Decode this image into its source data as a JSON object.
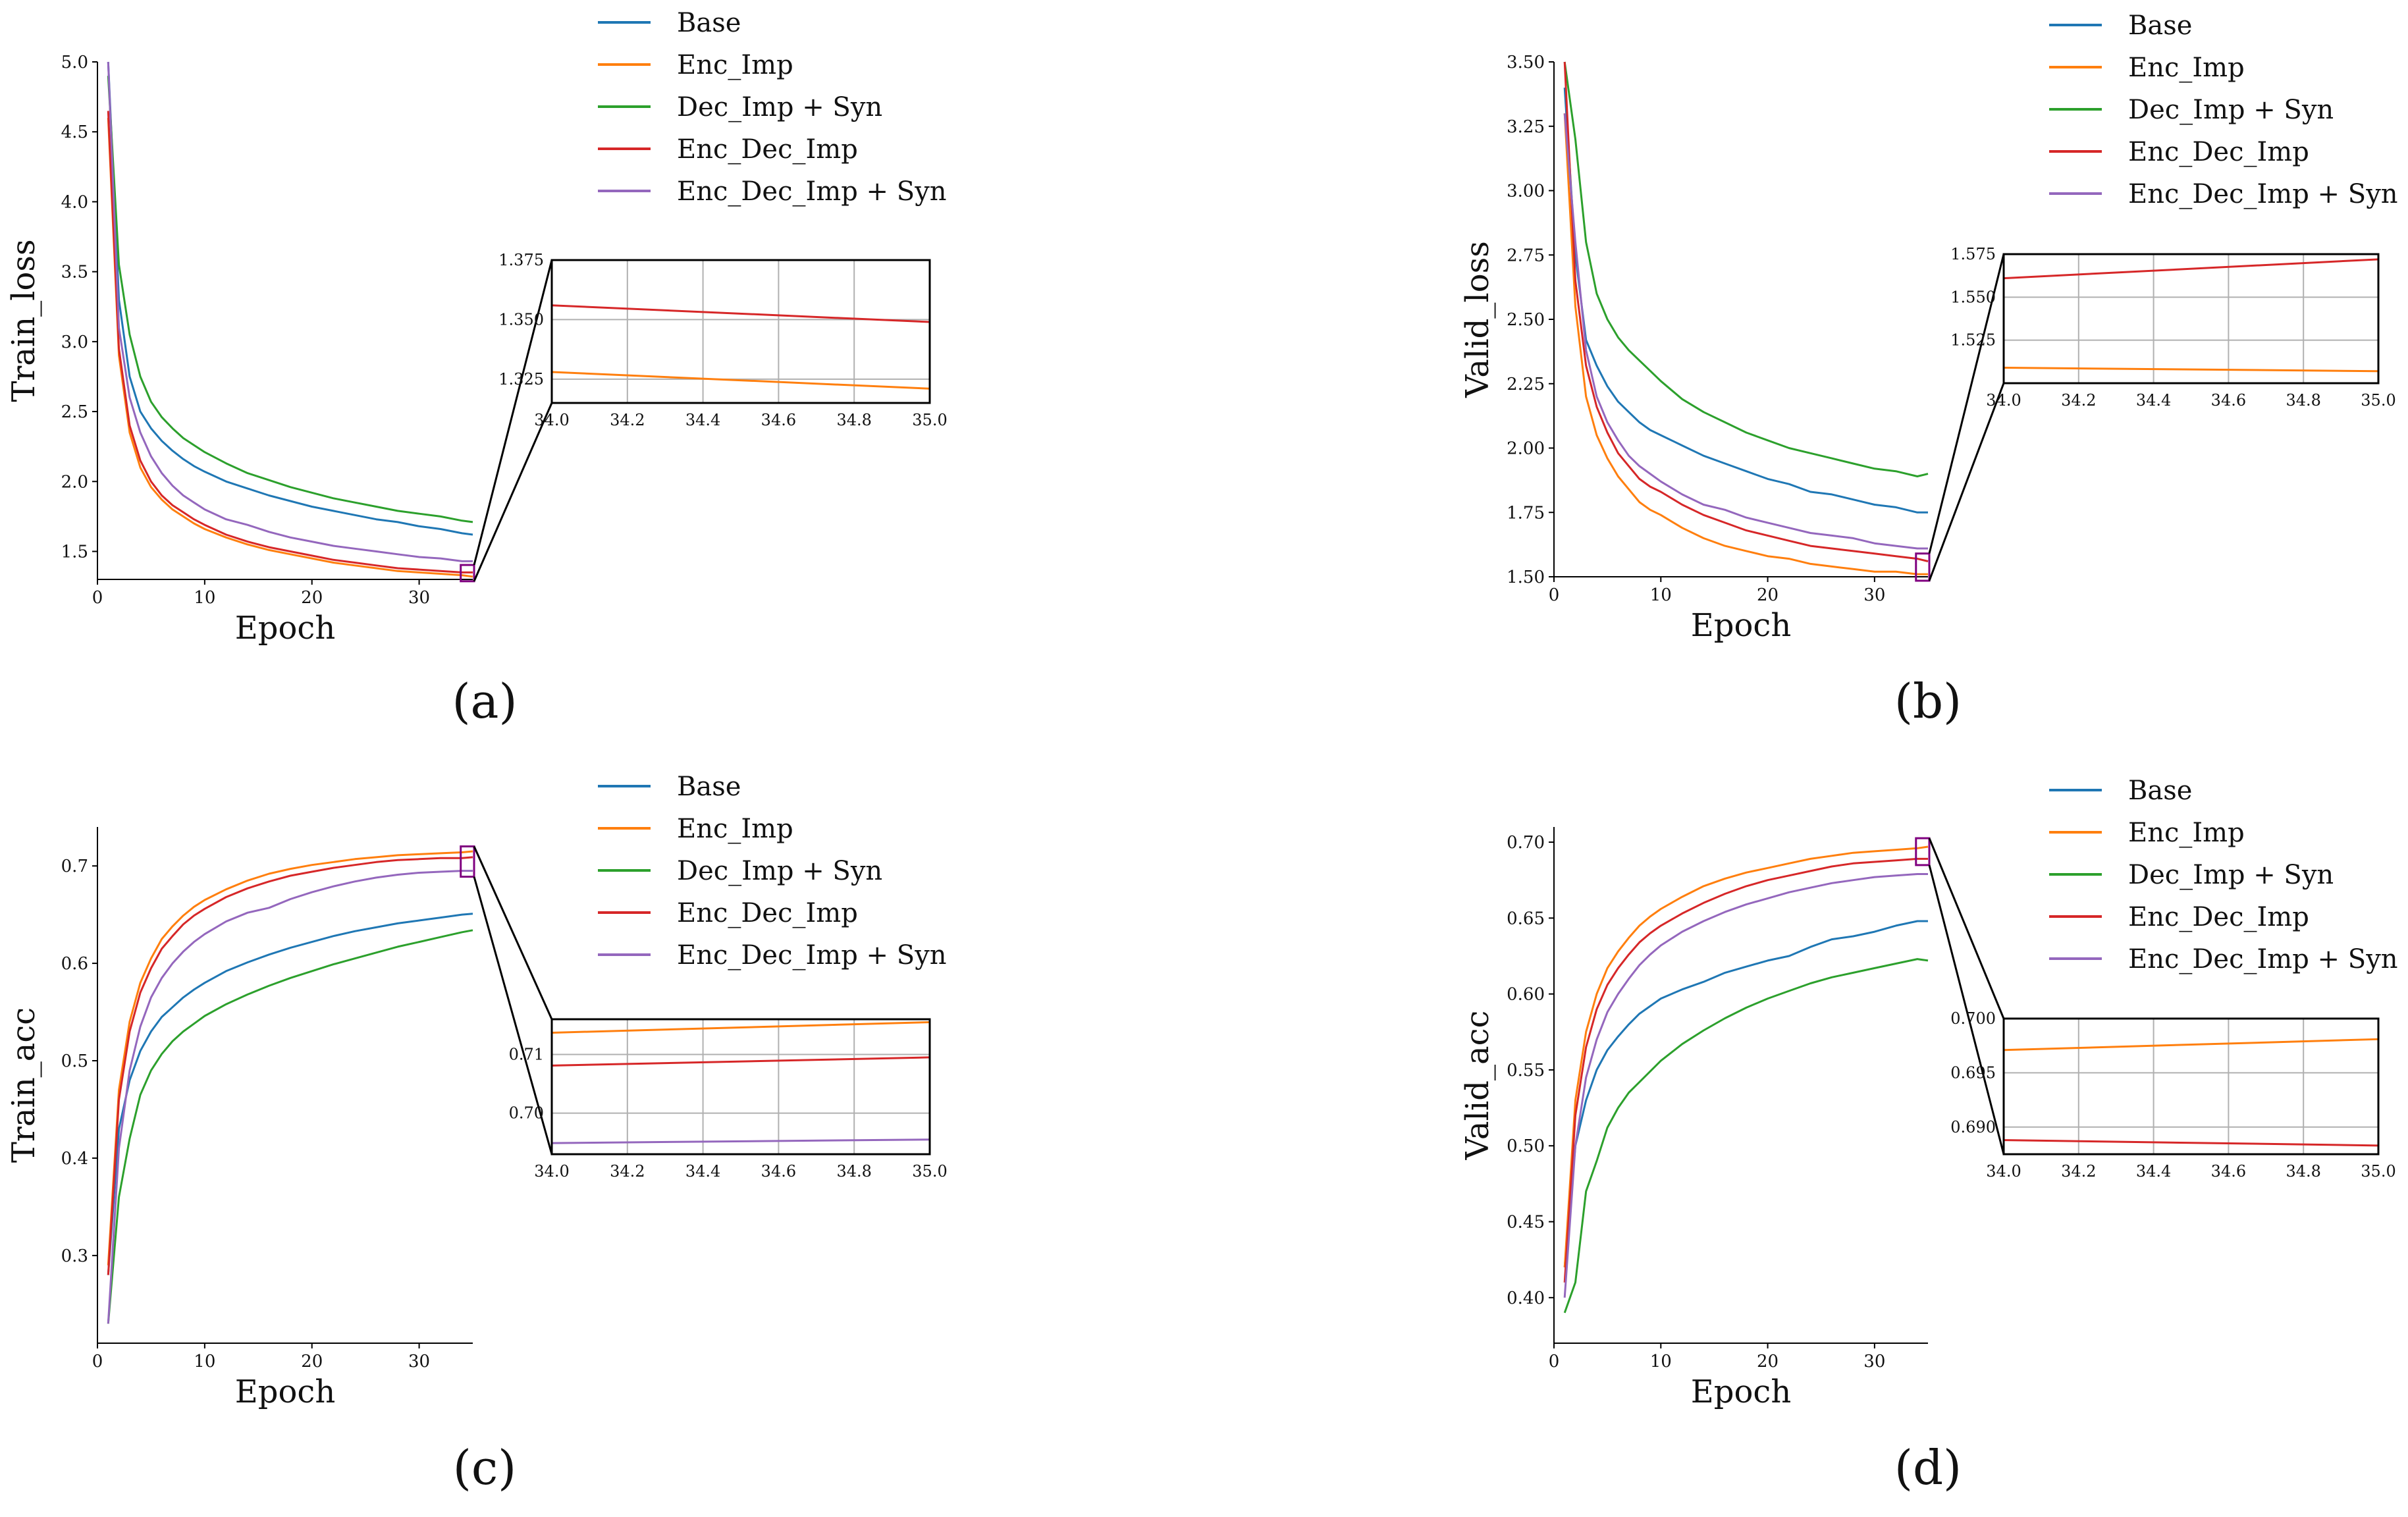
{
  "colors": {
    "series": [
      "#1f77b4",
      "#ff7f0e",
      "#2ca02c",
      "#d62728",
      "#9467bd"
    ],
    "grid": "#b0b0b0",
    "axis": "#000000",
    "highlight_box": "#800080"
  },
  "chart_data": [
    {
      "id": "a",
      "type": "line",
      "panel_label": "(a)",
      "xlabel": "Epoch",
      "ylabel": "Train_loss",
      "xlim": [
        0,
        35
      ],
      "ylim": [
        1.3,
        5.0
      ],
      "xticks": [
        0,
        10,
        20,
        30
      ],
      "yticks": [
        1.5,
        2.0,
        2.5,
        3.0,
        3.5,
        4.0,
        4.5,
        5.0
      ],
      "ytick_labels": [
        "1.5",
        "2.0",
        "2.5",
        "3.0",
        "3.5",
        "4.0",
        "4.5",
        "5.0"
      ],
      "legend_placement": "top-right",
      "x": [
        1,
        2,
        3,
        4,
        5,
        6,
        7,
        8,
        9,
        10,
        12,
        14,
        16,
        18,
        20,
        22,
        24,
        26,
        28,
        30,
        32,
        34,
        35
      ],
      "series": [
        {
          "name": "Base",
          "values": [
            5.0,
            3.3,
            2.75,
            2.5,
            2.38,
            2.29,
            2.22,
            2.16,
            2.11,
            2.07,
            2.0,
            1.95,
            1.9,
            1.86,
            1.82,
            1.79,
            1.76,
            1.73,
            1.71,
            1.68,
            1.66,
            1.63,
            1.62
          ]
        },
        {
          "name": "Enc_Imp",
          "values": [
            4.6,
            2.9,
            2.35,
            2.1,
            1.96,
            1.87,
            1.8,
            1.75,
            1.7,
            1.66,
            1.6,
            1.55,
            1.51,
            1.48,
            1.45,
            1.42,
            1.4,
            1.38,
            1.36,
            1.35,
            1.34,
            1.33,
            1.32
          ]
        },
        {
          "name": "Dec_Imp + Syn",
          "values": [
            4.9,
            3.55,
            3.05,
            2.75,
            2.57,
            2.46,
            2.38,
            2.31,
            2.26,
            2.21,
            2.13,
            2.06,
            2.01,
            1.96,
            1.92,
            1.88,
            1.85,
            1.82,
            1.79,
            1.77,
            1.75,
            1.72,
            1.71
          ]
        },
        {
          "name": "Enc_Dec_Imp",
          "values": [
            4.65,
            2.95,
            2.4,
            2.15,
            2.0,
            1.9,
            1.83,
            1.78,
            1.73,
            1.69,
            1.62,
            1.57,
            1.53,
            1.5,
            1.47,
            1.44,
            1.42,
            1.4,
            1.38,
            1.37,
            1.36,
            1.35,
            1.35
          ]
        },
        {
          "name": "Enc_Dec_Imp + Syn",
          "values": [
            5.0,
            3.1,
            2.6,
            2.35,
            2.18,
            2.06,
            1.97,
            1.9,
            1.85,
            1.8,
            1.73,
            1.69,
            1.64,
            1.6,
            1.57,
            1.54,
            1.52,
            1.5,
            1.48,
            1.46,
            1.45,
            1.43,
            1.43
          ]
        }
      ],
      "inset": {
        "xlim": [
          34.0,
          35.0
        ],
        "ylim": [
          1.315,
          1.375
        ],
        "xticks": [
          34.0,
          34.2,
          34.4,
          34.6,
          34.8,
          35.0
        ],
        "xtick_labels": [
          "34.0",
          "34.2",
          "34.4",
          "34.6",
          "34.8",
          "35.0"
        ],
        "yticks": [
          1.325,
          1.35,
          1.375
        ],
        "ytick_labels": [
          "1.325",
          "1.350",
          "1.375"
        ],
        "series": [
          {
            "name": "Enc_Imp",
            "values": [
              1.328,
              1.321
            ]
          },
          {
            "name": "Enc_Dec_Imp",
            "values": [
              1.356,
              1.349
            ]
          }
        ]
      }
    },
    {
      "id": "b",
      "type": "line",
      "panel_label": "(b)",
      "xlabel": "Epoch",
      "ylabel": "Valid_loss",
      "xlim": [
        0,
        35
      ],
      "ylim": [
        1.5,
        3.5
      ],
      "xticks": [
        0,
        10,
        20,
        30
      ],
      "yticks": [
        1.5,
        1.75,
        2.0,
        2.25,
        2.5,
        2.75,
        3.0,
        3.25,
        3.5
      ],
      "ytick_labels": [
        "1.50",
        "1.75",
        "2.00",
        "2.25",
        "2.50",
        "2.75",
        "3.00",
        "3.25",
        "3.50"
      ],
      "legend_placement": "top-right",
      "x": [
        1,
        2,
        3,
        4,
        5,
        6,
        7,
        8,
        9,
        10,
        12,
        14,
        16,
        18,
        20,
        22,
        24,
        26,
        28,
        30,
        32,
        34,
        35
      ],
      "series": [
        {
          "name": "Base",
          "values": [
            3.4,
            2.75,
            2.42,
            2.32,
            2.24,
            2.18,
            2.14,
            2.1,
            2.07,
            2.05,
            2.01,
            1.97,
            1.94,
            1.91,
            1.88,
            1.86,
            1.83,
            1.82,
            1.8,
            1.78,
            1.77,
            1.75,
            1.75
          ]
        },
        {
          "name": "Enc_Imp",
          "values": [
            3.3,
            2.55,
            2.2,
            2.05,
            1.96,
            1.89,
            1.84,
            1.79,
            1.76,
            1.74,
            1.69,
            1.65,
            1.62,
            1.6,
            1.58,
            1.57,
            1.55,
            1.54,
            1.53,
            1.52,
            1.52,
            1.51,
            1.51
          ]
        },
        {
          "name": "Dec_Imp + Syn",
          "values": [
            3.5,
            3.2,
            2.8,
            2.6,
            2.5,
            2.43,
            2.38,
            2.34,
            2.3,
            2.26,
            2.19,
            2.14,
            2.1,
            2.06,
            2.03,
            2.0,
            1.98,
            1.96,
            1.94,
            1.92,
            1.91,
            1.89,
            1.9
          ]
        },
        {
          "name": "Enc_Dec_Imp",
          "values": [
            3.5,
            2.65,
            2.32,
            2.16,
            2.06,
            1.98,
            1.93,
            1.88,
            1.85,
            1.83,
            1.78,
            1.74,
            1.71,
            1.68,
            1.66,
            1.64,
            1.62,
            1.61,
            1.6,
            1.59,
            1.58,
            1.57,
            1.56
          ]
        },
        {
          "name": "Enc_Dec_Imp + Syn",
          "values": [
            3.3,
            2.8,
            2.38,
            2.2,
            2.1,
            2.03,
            1.97,
            1.93,
            1.9,
            1.87,
            1.82,
            1.78,
            1.76,
            1.73,
            1.71,
            1.69,
            1.67,
            1.66,
            1.65,
            1.63,
            1.62,
            1.61,
            1.61
          ]
        }
      ],
      "inset": {
        "xlim": [
          34.0,
          35.0
        ],
        "ylim": [
          1.5,
          1.575
        ],
        "xticks": [
          34.0,
          34.2,
          34.4,
          34.6,
          34.8,
          35.0
        ],
        "xtick_labels": [
          "34.0",
          "34.2",
          "34.4",
          "34.6",
          "34.8",
          "35.0"
        ],
        "yticks": [
          1.525,
          1.55,
          1.575
        ],
        "ytick_labels": [
          "1.525",
          "1.550",
          "1.575"
        ],
        "series": [
          {
            "name": "Enc_Imp",
            "values": [
              1.509,
              1.507
            ]
          },
          {
            "name": "Enc_Dec_Imp",
            "values": [
              1.561,
              1.572
            ]
          }
        ]
      }
    },
    {
      "id": "c",
      "type": "line",
      "panel_label": "(c)",
      "xlabel": "Epoch",
      "ylabel": "Train_acc",
      "xlim": [
        0,
        35
      ],
      "ylim": [
        0.21,
        0.74
      ],
      "xticks": [
        0,
        10,
        20,
        30
      ],
      "yticks": [
        0.3,
        0.4,
        0.5,
        0.6,
        0.7
      ],
      "ytick_labels": [
        "0.3",
        "0.4",
        "0.5",
        "0.6",
        "0.7"
      ],
      "legend_placement": "top-right",
      "x": [
        1,
        2,
        3,
        4,
        5,
        6,
        7,
        8,
        9,
        10,
        12,
        14,
        16,
        18,
        20,
        22,
        24,
        26,
        28,
        30,
        32,
        34,
        35
      ],
      "series": [
        {
          "name": "Base",
          "values": [
            0.28,
            0.43,
            0.48,
            0.51,
            0.53,
            0.545,
            0.555,
            0.565,
            0.573,
            0.58,
            0.592,
            0.601,
            0.609,
            0.616,
            0.622,
            0.628,
            0.633,
            0.637,
            0.641,
            0.644,
            0.647,
            0.65,
            0.651
          ]
        },
        {
          "name": "Enc_Imp",
          "values": [
            0.29,
            0.47,
            0.54,
            0.58,
            0.605,
            0.625,
            0.638,
            0.649,
            0.658,
            0.665,
            0.676,
            0.685,
            0.692,
            0.697,
            0.701,
            0.704,
            0.707,
            0.709,
            0.711,
            0.712,
            0.713,
            0.714,
            0.715
          ]
        },
        {
          "name": "Dec_Imp + Syn",
          "values": [
            0.23,
            0.36,
            0.42,
            0.465,
            0.49,
            0.507,
            0.52,
            0.53,
            0.538,
            0.546,
            0.558,
            0.568,
            0.577,
            0.585,
            0.592,
            0.599,
            0.605,
            0.611,
            0.617,
            0.622,
            0.627,
            0.632,
            0.634
          ]
        },
        {
          "name": "Enc_Dec_Imp",
          "values": [
            0.28,
            0.46,
            0.53,
            0.57,
            0.595,
            0.615,
            0.628,
            0.64,
            0.649,
            0.656,
            0.668,
            0.677,
            0.684,
            0.69,
            0.694,
            0.698,
            0.701,
            0.704,
            0.706,
            0.707,
            0.708,
            0.708,
            0.709
          ]
        },
        {
          "name": "Enc_Dec_Imp + Syn",
          "values": [
            0.23,
            0.41,
            0.49,
            0.535,
            0.565,
            0.585,
            0.6,
            0.612,
            0.622,
            0.63,
            0.643,
            0.652,
            0.657,
            0.666,
            0.673,
            0.679,
            0.684,
            0.688,
            0.691,
            0.693,
            0.694,
            0.695,
            0.695
          ]
        }
      ],
      "inset": {
        "xlim": [
          34.0,
          35.0
        ],
        "ylim": [
          0.693,
          0.716
        ],
        "xticks": [
          34.0,
          34.2,
          34.4,
          34.6,
          34.8,
          35.0
        ],
        "xtick_labels": [
          "34.0",
          "34.2",
          "34.4",
          "34.6",
          "34.8",
          "35.0"
        ],
        "yticks": [
          0.7,
          0.71
        ],
        "ytick_labels": [
          "0.70",
          "0.71"
        ],
        "series": [
          {
            "name": "Enc_Imp",
            "values": [
              0.7137,
              0.7155
            ]
          },
          {
            "name": "Enc_Dec_Imp",
            "values": [
              0.7081,
              0.7095
            ]
          },
          {
            "name": "Enc_Dec_Imp + Syn",
            "values": [
              0.6949,
              0.6955
            ]
          }
        ]
      }
    },
    {
      "id": "d",
      "type": "line",
      "panel_label": "(d)",
      "xlabel": "Epoch",
      "ylabel": "Valid_acc",
      "xlim": [
        0,
        35
      ],
      "ylim": [
        0.37,
        0.71
      ],
      "xticks": [
        0,
        10,
        20,
        30
      ],
      "yticks": [
        0.4,
        0.45,
        0.5,
        0.55,
        0.6,
        0.65,
        0.7
      ],
      "ytick_labels": [
        "0.40",
        "0.45",
        "0.50",
        "0.55",
        "0.60",
        "0.65",
        "0.70"
      ],
      "legend_placement": "top-right",
      "x": [
        1,
        2,
        3,
        4,
        5,
        6,
        7,
        8,
        9,
        10,
        12,
        14,
        16,
        18,
        20,
        22,
        24,
        26,
        28,
        30,
        32,
        34,
        35
      ],
      "series": [
        {
          "name": "Base",
          "values": [
            0.42,
            0.5,
            0.53,
            0.55,
            0.563,
            0.572,
            0.58,
            0.587,
            0.592,
            0.597,
            0.603,
            0.608,
            0.614,
            0.618,
            0.622,
            0.625,
            0.631,
            0.636,
            0.638,
            0.641,
            0.645,
            0.648,
            0.648
          ]
        },
        {
          "name": "Enc_Imp",
          "values": [
            0.42,
            0.53,
            0.575,
            0.6,
            0.617,
            0.628,
            0.637,
            0.645,
            0.651,
            0.656,
            0.664,
            0.671,
            0.676,
            0.68,
            0.683,
            0.686,
            0.689,
            0.691,
            0.693,
            0.694,
            0.695,
            0.696,
            0.697
          ]
        },
        {
          "name": "Dec_Imp + Syn",
          "values": [
            0.39,
            0.41,
            0.47,
            0.49,
            0.512,
            0.525,
            0.535,
            0.542,
            0.549,
            0.556,
            0.567,
            0.576,
            0.584,
            0.591,
            0.597,
            0.602,
            0.607,
            0.611,
            0.614,
            0.617,
            0.62,
            0.623,
            0.622
          ]
        },
        {
          "name": "Enc_Dec_Imp",
          "values": [
            0.41,
            0.52,
            0.565,
            0.59,
            0.606,
            0.617,
            0.626,
            0.634,
            0.64,
            0.645,
            0.653,
            0.66,
            0.666,
            0.671,
            0.675,
            0.678,
            0.681,
            0.684,
            0.686,
            0.687,
            0.688,
            0.689,
            0.689
          ]
        },
        {
          "name": "Enc_Dec_Imp + Syn",
          "values": [
            0.4,
            0.5,
            0.545,
            0.57,
            0.588,
            0.6,
            0.61,
            0.619,
            0.626,
            0.632,
            0.641,
            0.648,
            0.654,
            0.659,
            0.663,
            0.667,
            0.67,
            0.673,
            0.675,
            0.677,
            0.678,
            0.679,
            0.679
          ]
        }
      ],
      "inset": {
        "xlim": [
          34.0,
          35.0
        ],
        "ylim": [
          0.6875,
          0.7
        ],
        "xticks": [
          34.0,
          34.2,
          34.4,
          34.6,
          34.8,
          35.0
        ],
        "xtick_labels": [
          "34.0",
          "34.2",
          "34.4",
          "34.6",
          "34.8",
          "35.0"
        ],
        "yticks": [
          0.69,
          0.695,
          0.7
        ],
        "ytick_labels": [
          "0.690",
          "0.695",
          "0.700"
        ],
        "series": [
          {
            "name": "Enc_Imp",
            "values": [
              0.6971,
              0.6981
            ]
          },
          {
            "name": "Enc_Dec_Imp",
            "values": [
              0.6888,
              0.6883
            ]
          }
        ]
      }
    }
  ]
}
